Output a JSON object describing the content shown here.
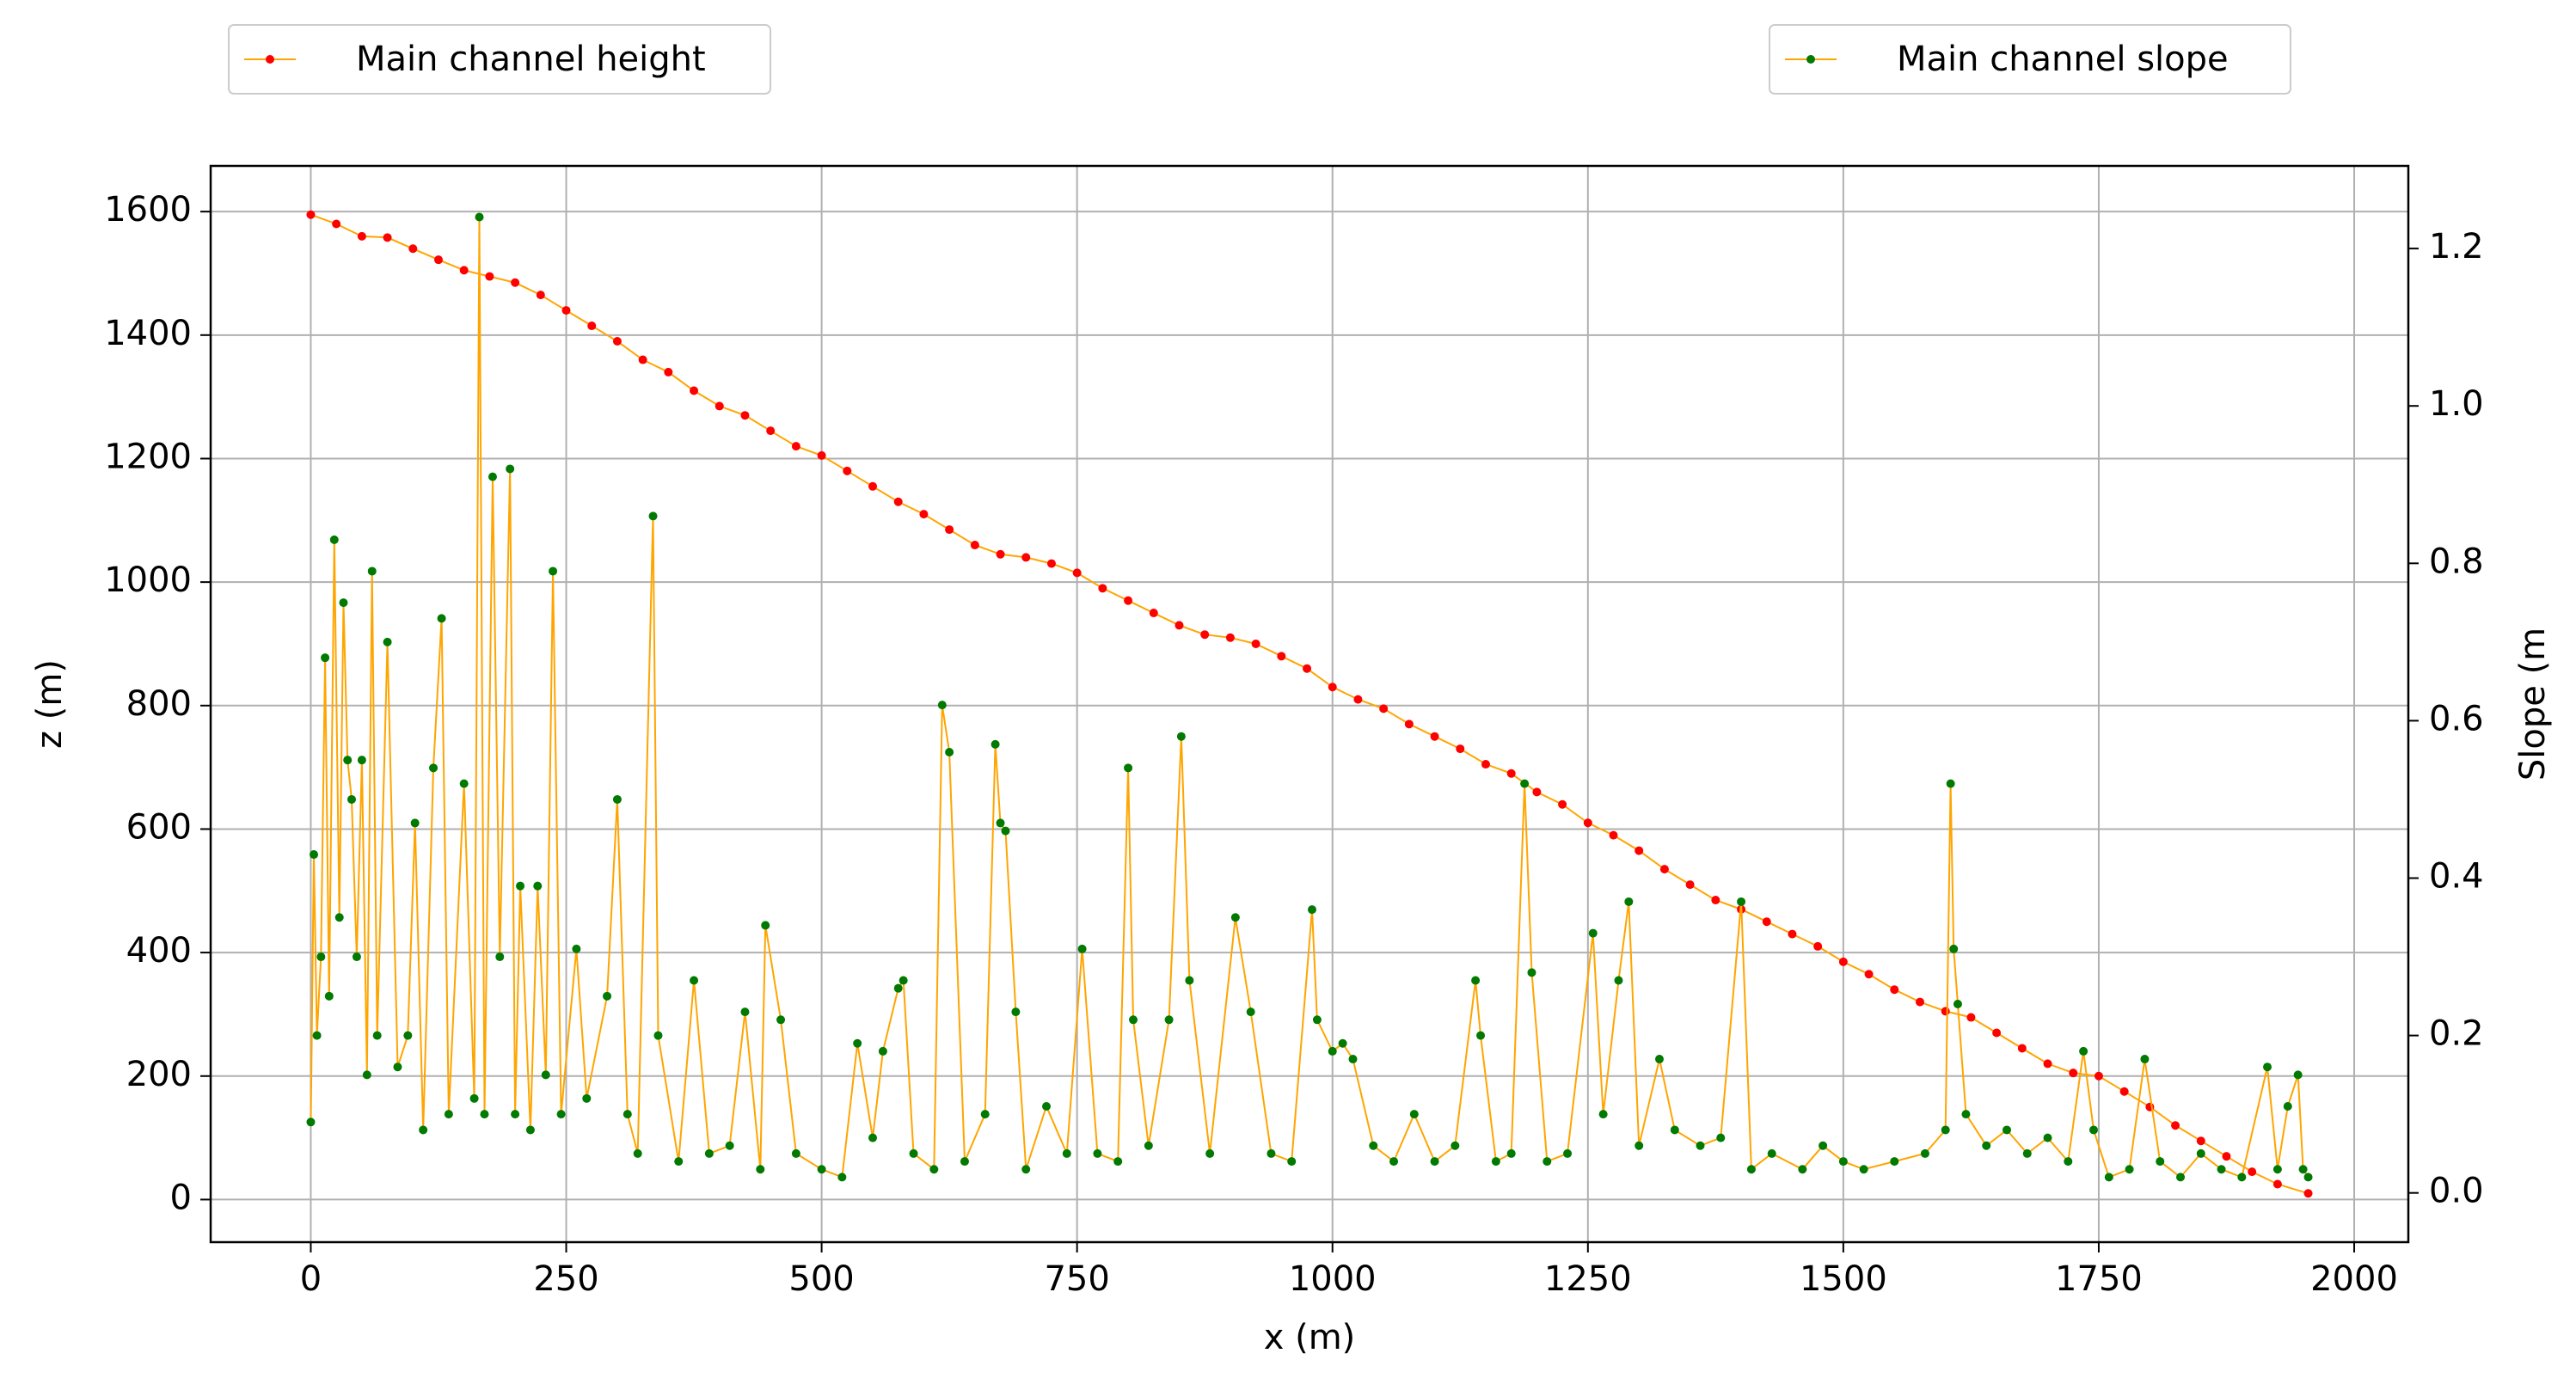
{
  "chart_data": {
    "type": "line",
    "xlabel": "x (m)",
    "ylabel": "z (m)",
    "y2label": "Slope (m",
    "xlim": [
      -98,
      2053
    ],
    "ylim": [
      -69,
      1674
    ],
    "y2lim": [
      -0.0626,
      1.305
    ],
    "xticks": [
      0,
      250,
      500,
      750,
      1000,
      1250,
      1500,
      1750,
      2000
    ],
    "yticks": [
      0,
      200,
      400,
      600,
      800,
      1000,
      1200,
      1400,
      1600
    ],
    "y2ticks": [
      {
        "value": 0,
        "label": "0.0"
      },
      {
        "value": 0.2,
        "label": "0.2"
      },
      {
        "value": 0.4,
        "label": "0.4"
      },
      {
        "value": 0.6,
        "label": "0.6"
      },
      {
        "value": 0.8,
        "label": "0.8"
      },
      {
        "value": 1,
        "label": "1.0"
      },
      {
        "value": 1.2,
        "label": "1.2"
      }
    ],
    "grid": true,
    "series": [
      {
        "name": "Main channel height",
        "color": "#ffa500",
        "marker_color": "#ff0000",
        "legend": "upper left",
        "x": [
          0,
          25,
          50,
          75,
          100,
          125,
          150,
          175,
          200,
          225,
          250,
          275,
          300,
          325,
          350,
          375,
          400,
          425,
          450,
          475,
          500,
          525,
          550,
          575,
          600,
          625,
          650,
          675,
          700,
          725,
          750,
          775,
          800,
          825,
          850,
          875,
          900,
          925,
          950,
          975,
          1000,
          1025,
          1050,
          1075,
          1100,
          1125,
          1150,
          1175,
          1200,
          1225,
          1250,
          1275,
          1300,
          1325,
          1350,
          1375,
          1400,
          1425,
          1450,
          1475,
          1500,
          1525,
          1550,
          1575,
          1600,
          1625,
          1650,
          1675,
          1700,
          1725,
          1750,
          1775,
          1800,
          1825,
          1850,
          1875,
          1900,
          1925,
          1955
        ],
        "values": [
          1595,
          1580,
          1560,
          1558,
          1540,
          1522,
          1505,
          1495,
          1485,
          1465,
          1440,
          1415,
          1390,
          1360,
          1340,
          1310,
          1285,
          1270,
          1245,
          1220,
          1205,
          1180,
          1155,
          1130,
          1110,
          1085,
          1060,
          1045,
          1040,
          1030,
          1015,
          990,
          970,
          950,
          930,
          915,
          910,
          900,
          880,
          860,
          830,
          810,
          795,
          770,
          750,
          730,
          705,
          690,
          660,
          640,
          610,
          590,
          565,
          535,
          510,
          485,
          470,
          450,
          430,
          410,
          385,
          365,
          340,
          320,
          305,
          295,
          270,
          245,
          220,
          205,
          200,
          175,
          150,
          120,
          95,
          70,
          45,
          25,
          10
        ]
      },
      {
        "name": "Main channel slope",
        "color": "#ffa500",
        "marker_color": "#007a00",
        "axis": "y2",
        "legend": "upper right",
        "x": [
          0,
          3,
          6,
          10,
          14,
          18,
          23,
          28,
          32,
          36,
          40,
          45,
          50,
          55,
          60,
          65,
          75,
          85,
          95,
          102,
          110,
          120,
          128,
          135,
          150,
          160,
          165,
          170,
          178,
          185,
          195,
          200,
          205,
          215,
          222,
          230,
          237,
          245,
          260,
          270,
          290,
          300,
          310,
          320,
          335,
          340,
          360,
          375,
          390,
          410,
          425,
          440,
          445,
          460,
          475,
          500,
          520,
          535,
          550,
          560,
          575,
          580,
          590,
          610,
          618,
          625,
          640,
          660,
          670,
          675,
          680,
          690,
          700,
          720,
          740,
          755,
          770,
          790,
          800,
          805,
          820,
          840,
          852,
          860,
          880,
          905,
          920,
          940,
          960,
          980,
          985,
          1000,
          1010,
          1020,
          1040,
          1060,
          1080,
          1100,
          1120,
          1140,
          1145,
          1160,
          1175,
          1188,
          1195,
          1210,
          1230,
          1255,
          1265,
          1280,
          1290,
          1300,
          1320,
          1335,
          1360,
          1380,
          1400,
          1410,
          1430,
          1460,
          1480,
          1500,
          1520,
          1550,
          1580,
          1600,
          1605,
          1608,
          1612,
          1620,
          1640,
          1660,
          1680,
          1700,
          1720,
          1735,
          1745,
          1760,
          1780,
          1795,
          1810,
          1830,
          1850,
          1870,
          1890,
          1915,
          1925,
          1935,
          1945,
          1950,
          1955
        ],
        "values": [
          0.09,
          0.43,
          0.2,
          0.3,
          0.68,
          0.25,
          0.83,
          0.35,
          0.75,
          0.55,
          0.5,
          0.3,
          0.55,
          0.15,
          0.79,
          0.2,
          0.7,
          0.16,
          0.2,
          0.47,
          0.08,
          0.54,
          0.73,
          0.1,
          0.52,
          0.12,
          1.24,
          0.1,
          0.91,
          0.3,
          0.92,
          0.1,
          0.39,
          0.08,
          0.39,
          0.15,
          0.79,
          0.1,
          0.31,
          0.12,
          0.25,
          0.5,
          0.1,
          0.05,
          0.86,
          0.2,
          0.04,
          0.27,
          0.05,
          0.06,
          0.23,
          0.03,
          0.34,
          0.22,
          0.05,
          0.03,
          0.02,
          0.19,
          0.07,
          0.18,
          0.26,
          0.27,
          0.05,
          0.03,
          0.62,
          0.56,
          0.04,
          0.1,
          0.57,
          0.47,
          0.46,
          0.23,
          0.03,
          0.11,
          0.05,
          0.31,
          0.05,
          0.04,
          0.54,
          0.22,
          0.06,
          0.22,
          0.58,
          0.27,
          0.05,
          0.35,
          0.23,
          0.05,
          0.04,
          0.36,
          0.22,
          0.18,
          0.19,
          0.17,
          0.06,
          0.04,
          0.1,
          0.04,
          0.06,
          0.27,
          0.2,
          0.04,
          0.05,
          0.52,
          0.28,
          0.04,
          0.05,
          0.33,
          0.1,
          0.27,
          0.37,
          0.06,
          0.17,
          0.08,
          0.06,
          0.07,
          0.37,
          0.03,
          0.05,
          0.03,
          0.06,
          0.04,
          0.03,
          0.04,
          0.05,
          0.08,
          0.52,
          0.31,
          0.24,
          0.1,
          0.06,
          0.08,
          0.05,
          0.07,
          0.04,
          0.18,
          0.08,
          0.02,
          0.03,
          0.17,
          0.04,
          0.02,
          0.05,
          0.03,
          0.02,
          0.16,
          0.03,
          0.11,
          0.15,
          0.03,
          0.02
        ]
      }
    ]
  }
}
